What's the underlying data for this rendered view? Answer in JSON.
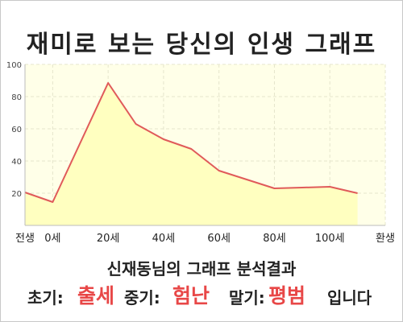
{
  "title": "재미로 보는 당신의 인생 그래프",
  "chart_data": {
    "type": "area",
    "x": [
      -10,
      0,
      20,
      30,
      40,
      50,
      60,
      70,
      80,
      90,
      100,
      110
    ],
    "values": [
      20.5,
      14.5,
      88.5,
      63,
      53.5,
      47.5,
      34,
      28.5,
      23,
      23.5,
      24,
      20
    ],
    "xticks": [
      {
        "x": -10,
        "label": "전생"
      },
      {
        "x": 0,
        "label": "0세"
      },
      {
        "x": 20,
        "label": "20세"
      },
      {
        "x": 40,
        "label": "40세"
      },
      {
        "x": 60,
        "label": "60세"
      },
      {
        "x": 80,
        "label": "80세"
      },
      {
        "x": 100,
        "label": "100세"
      },
      {
        "x": 120,
        "label": "환생"
      }
    ],
    "yticks": [
      20,
      40,
      60,
      80,
      100
    ],
    "ylim": [
      0,
      100
    ],
    "xlim": [
      -10,
      120
    ],
    "grid": true,
    "colors": {
      "line": "#e05a5a",
      "fill": "#ffffc0",
      "plot_bg": "#ffffe8",
      "grid": "#e6e6cc"
    }
  },
  "caption": "신재동님의 그래프 분석결과",
  "result": {
    "early_label": "초기:",
    "early_value": "출세",
    "mid_label": "중기:",
    "mid_value": "험난",
    "late_label": "말기:",
    "late_value": "평범",
    "ending": "입니다"
  },
  "accent_color": "#e84747"
}
